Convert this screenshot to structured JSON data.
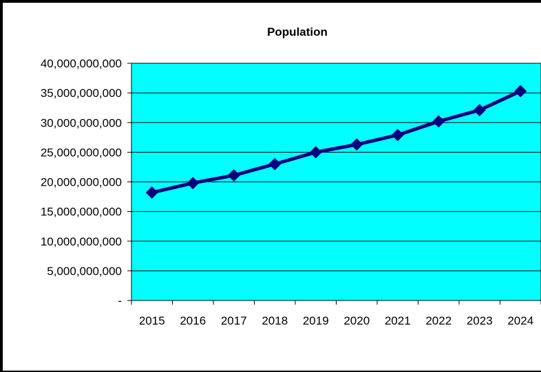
{
  "chart_data": {
    "type": "line",
    "title": "Population",
    "xlabel": "",
    "ylabel": "",
    "categories": [
      "2015",
      "2016",
      "2017",
      "2018",
      "2019",
      "2020",
      "2021",
      "2022",
      "2023",
      "2024"
    ],
    "series": [
      {
        "values": [
          18200000000,
          19800000000,
          21100000000,
          23000000000,
          25000000000,
          26300000000,
          27900000000,
          30200000000,
          32100000000,
          35300000000
        ]
      }
    ],
    "ylim": [
      0,
      40000000000
    ],
    "y_ticks": [
      {
        "value": 0,
        "label": "-"
      },
      {
        "value": 5000000000,
        "label": "5,000,000,000"
      },
      {
        "value": 10000000000,
        "label": "10,000,000,000"
      },
      {
        "value": 15000000000,
        "label": "15,000,000,000"
      },
      {
        "value": 20000000000,
        "label": "20,000,000,000"
      },
      {
        "value": 25000000000,
        "label": "25,000,000,000"
      },
      {
        "value": 30000000000,
        "label": "30,000,000,000"
      },
      {
        "value": 35000000000,
        "label": "35,000,000,000"
      },
      {
        "value": 40000000000,
        "label": "40,000,000,000"
      }
    ],
    "grid": true,
    "legend": "none",
    "colors": {
      "plot_background": "#00FFFF",
      "line": "#000080",
      "marker": "#000080",
      "gridline": "#000000"
    }
  }
}
